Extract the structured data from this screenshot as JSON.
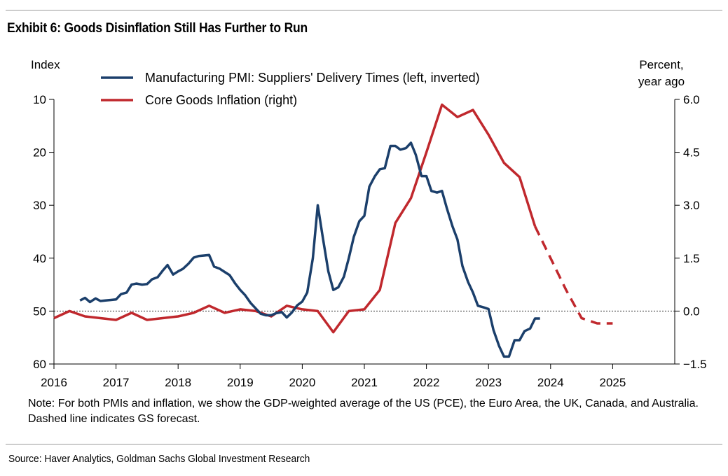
{
  "exhibit": {
    "title": "Exhibit 6: Goods Disinflation Still Has Further to Run",
    "note": "Note: For both PMIs and inflation, we show the GDP-weighted average of the US (PCE), the Euro Area, the UK, Canada, and Australia. Dashed line indicates GS forecast.",
    "source": "Source: Haver Analytics, Goldman Sachs Global Investment Research"
  },
  "chart_data": {
    "type": "line",
    "title": "Goods Disinflation Still Has Further to Run",
    "left_axis": {
      "label": "Index",
      "range": [
        10,
        60
      ],
      "inverted": true,
      "ticks": [
        10,
        20,
        30,
        40,
        50,
        60
      ],
      "tick_labels": [
        "10",
        "20",
        "30",
        "40",
        "50",
        "60"
      ]
    },
    "right_axis": {
      "label_line1": "Percent,",
      "label_line2": "year ago",
      "range": [
        -1.5,
        6.0
      ],
      "ticks": [
        6.0,
        4.5,
        3.0,
        1.5,
        0.0,
        -1.5
      ],
      "tick_labels": [
        "6.0",
        "4.5",
        "3.0",
        "1.5",
        "0.0",
        "−1.5"
      ]
    },
    "x_axis": {
      "range": [
        2016,
        2026
      ],
      "ticks": [
        2016,
        2017,
        2018,
        2019,
        2020,
        2021,
        2022,
        2023,
        2024,
        2025
      ],
      "tick_labels": [
        "2016",
        "2017",
        "2018",
        "2019",
        "2020",
        "2021",
        "2022",
        "2023",
        "2024",
        "2025"
      ]
    },
    "reference_line": {
      "axis": "right",
      "value": 0.0,
      "style": "dotted"
    },
    "legend": {
      "position": "top-center"
    },
    "series": [
      {
        "name": "Manufacturing PMI: Suppliers' Delivery Times (left, inverted)",
        "axis": "left",
        "color": "#1b3f6b",
        "x": [
          2016.42,
          2016.5,
          2016.58,
          2016.67,
          2016.75,
          2016.83,
          2016.92,
          2017.0,
          2017.08,
          2017.17,
          2017.25,
          2017.33,
          2017.42,
          2017.5,
          2017.58,
          2017.67,
          2017.75,
          2017.83,
          2017.92,
          2018.0,
          2018.08,
          2018.17,
          2018.25,
          2018.33,
          2018.42,
          2018.5,
          2018.58,
          2018.67,
          2018.75,
          2018.83,
          2018.92,
          2019.0,
          2019.08,
          2019.17,
          2019.25,
          2019.33,
          2019.42,
          2019.5,
          2019.58,
          2019.67,
          2019.75,
          2019.83,
          2019.92,
          2020.0,
          2020.08,
          2020.17,
          2020.25,
          2020.33,
          2020.42,
          2020.5,
          2020.58,
          2020.67,
          2020.75,
          2020.83,
          2020.92,
          2021.0,
          2021.08,
          2021.17,
          2021.25,
          2021.33,
          2021.42,
          2021.5,
          2021.58,
          2021.67,
          2021.75,
          2021.83,
          2021.92,
          2022.0,
          2022.08,
          2022.17,
          2022.25,
          2022.33,
          2022.42,
          2022.5,
          2022.58,
          2022.67,
          2022.75,
          2022.83,
          2022.92,
          2023.0,
          2023.08,
          2023.17,
          2023.25,
          2023.33,
          2023.42,
          2023.5,
          2023.58,
          2023.67,
          2023.75,
          2023.83
        ],
        "y": [
          48.0,
          47.5,
          48.3,
          47.6,
          48.1,
          48.0,
          47.9,
          47.8,
          46.8,
          46.5,
          45.0,
          44.8,
          45.0,
          44.9,
          44.0,
          43.6,
          42.4,
          41.3,
          43.1,
          42.5,
          42.0,
          41.0,
          39.9,
          39.6,
          39.5,
          39.4,
          41.6,
          42.0,
          42.6,
          43.2,
          44.8,
          46.0,
          47.0,
          48.5,
          49.5,
          50.5,
          50.8,
          50.8,
          50.4,
          50.2,
          51.2,
          50.3,
          48.9,
          48.2,
          46.5,
          40.0,
          30.0,
          36.0,
          42.5,
          46.0,
          45.5,
          43.5,
          40.0,
          36.0,
          33.0,
          32.0,
          26.5,
          24.5,
          23.2,
          23.0,
          18.8,
          18.8,
          19.5,
          19.2,
          18.2,
          20.5,
          24.5,
          24.5,
          27.3,
          27.6,
          27.3,
          30.6,
          34.0,
          36.5,
          41.5,
          44.5,
          46.5,
          49.0,
          49.3,
          49.6,
          53.6,
          56.6,
          58.6,
          58.6,
          55.5,
          55.5,
          53.8,
          53.3,
          51.4,
          51.4
        ]
      },
      {
        "name": "Core Goods Inflation (right)",
        "axis": "right",
        "color": "#c0282d",
        "x": [
          2016.0,
          2016.25,
          2016.5,
          2016.75,
          2017.0,
          2017.25,
          2017.5,
          2017.75,
          2018.0,
          2018.25,
          2018.5,
          2018.75,
          2019.0,
          2019.25,
          2019.5,
          2019.75,
          2020.0,
          2020.25,
          2020.5,
          2020.75,
          2021.0,
          2021.25,
          2021.5,
          2021.75,
          2022.0,
          2022.25,
          2022.5,
          2022.75,
          2023.0,
          2023.25,
          2023.5,
          2023.75
        ],
        "y": [
          -0.2,
          0.0,
          -0.15,
          -0.2,
          -0.25,
          -0.05,
          -0.25,
          -0.2,
          -0.15,
          -0.05,
          0.15,
          -0.05,
          0.05,
          0.0,
          -0.15,
          0.15,
          0.05,
          0.0,
          -0.6,
          0.0,
          0.05,
          0.6,
          2.5,
          3.2,
          4.5,
          5.85,
          5.5,
          5.7,
          5.0,
          4.2,
          3.8,
          2.4
        ],
        "forecast": {
          "x": [
            2023.75,
            2024.0,
            2024.25,
            2024.5,
            2024.75,
            2025.0
          ],
          "y": [
            2.4,
            1.5,
            0.6,
            -0.2,
            -0.35,
            -0.35
          ]
        }
      }
    ]
  }
}
